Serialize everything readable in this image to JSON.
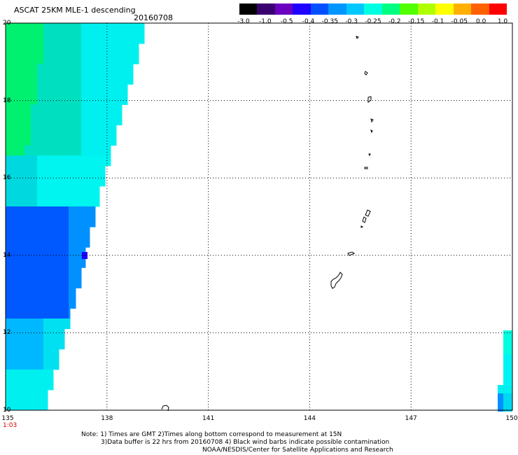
{
  "header": {
    "title": "ASCAT 25KM MLE-1 descending",
    "date": "20160708"
  },
  "colorbar": {
    "labels": [
      "-3.0",
      "-1.0",
      "-0.5",
      "-0.4",
      "-0.35",
      "-0.3",
      "-0.25",
      "-0.2",
      "-0.15",
      "-0.1",
      "-0.05",
      "0.0",
      "1.0"
    ],
    "colors": [
      "#000000",
      "#3a0070",
      "#6a00c0",
      "#1e00ff",
      "#0050ff",
      "#0096ff",
      "#00c8ff",
      "#00ffe0",
      "#00ff80",
      "#50ff00",
      "#b0ff00",
      "#ffff00",
      "#ffb000",
      "#ff6000",
      "#ff0000"
    ]
  },
  "axes": {
    "lat_labels": [
      "20",
      "18",
      "16",
      "14",
      "12",
      "10"
    ],
    "lon_labels": [
      "135",
      "138",
      "141",
      "144",
      "147",
      "150"
    ],
    "lat_range": [
      10,
      20
    ],
    "lon_range": [
      135,
      150
    ],
    "grid": "dotted"
  },
  "time_label": "1:03",
  "notes": {
    "line1": "Note: 1) Times are GMT 2)Times along bottom correspond to measurement at 15N",
    "line2": "3)Data buffer is 22 hrs from 20160708 4) Black wind barbs indicate possible contamination",
    "line3": "NOAA/NESDIS/Center for Satellite Applications and Research"
  }
}
